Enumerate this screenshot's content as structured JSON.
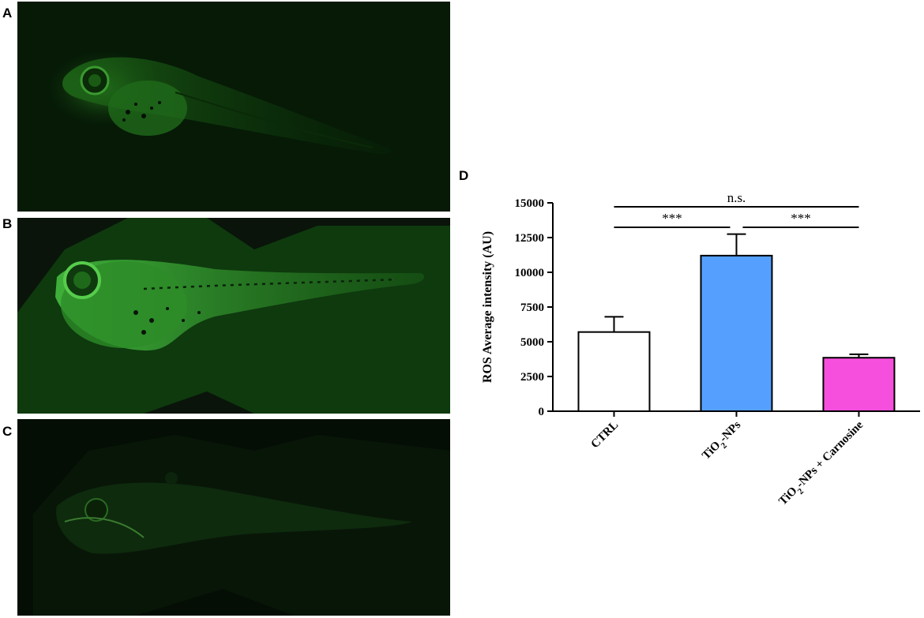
{
  "panels": [
    {
      "label": "A"
    },
    {
      "label": "B"
    },
    {
      "label": "C"
    },
    {
      "label": "D"
    }
  ],
  "colors": {
    "ctrl": "#ffffff",
    "tio2": "#55a0ff",
    "tio2_carnosine": "#f74fdd",
    "fluorescence": "#1a5a12"
  },
  "chart_data": {
    "type": "bar",
    "ylabel": "ROS Average intensity (AU)",
    "categories": [
      "CTRL",
      "TiO2-NPs",
      "TiO2-NPs + Carnosine"
    ],
    "category_display": [
      {
        "before": "CTRL",
        "sub": "",
        "after": ""
      },
      {
        "before": "TiO",
        "sub": "2",
        "after": "-NPs"
      },
      {
        "before": "TiO",
        "sub": "2",
        "after": "-NPs + Carnosine"
      }
    ],
    "values": [
      5700,
      11200,
      3850
    ],
    "errors": [
      1100,
      1550,
      250
    ],
    "ylim": [
      0,
      15000
    ],
    "yticks": [
      0,
      2500,
      5000,
      7500,
      10000,
      12500,
      15000
    ],
    "grid": false,
    "significance": [
      {
        "from": 0,
        "to": 2,
        "label": "n.s."
      },
      {
        "from": 0,
        "to": 1,
        "label": "***"
      },
      {
        "from": 1,
        "to": 2,
        "label": "***"
      }
    ]
  }
}
